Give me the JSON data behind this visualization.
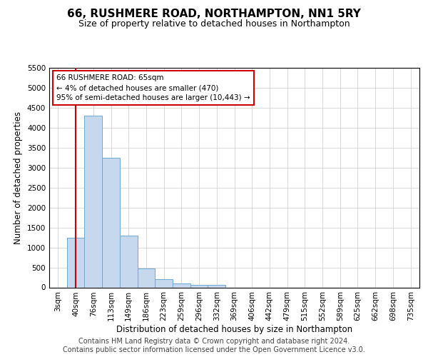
{
  "title": "66, RUSHMERE ROAD, NORTHAMPTON, NN1 5RY",
  "subtitle": "Size of property relative to detached houses in Northampton",
  "xlabel": "Distribution of detached houses by size in Northampton",
  "ylabel": "Number of detached properties",
  "bin_labels": [
    "3sqm",
    "40sqm",
    "76sqm",
    "113sqm",
    "149sqm",
    "186sqm",
    "223sqm",
    "259sqm",
    "296sqm",
    "332sqm",
    "369sqm",
    "406sqm",
    "442sqm",
    "479sqm",
    "515sqm",
    "552sqm",
    "589sqm",
    "625sqm",
    "662sqm",
    "698sqm",
    "735sqm"
  ],
  "bar_values": [
    0,
    1250,
    4300,
    3250,
    1300,
    480,
    200,
    100,
    60,
    55,
    0,
    0,
    0,
    0,
    0,
    0,
    0,
    0,
    0,
    0,
    0
  ],
  "bar_color": "#c5d8ed",
  "bar_edge_color": "#6fa8d0",
  "property_line_x": 1.5,
  "property_line_color": "#cc0000",
  "annotation_text": "66 RUSHMERE ROAD: 65sqm\n← 4% of detached houses are smaller (470)\n95% of semi-detached houses are larger (10,443) →",
  "annotation_box_color": "#ffffff",
  "annotation_box_edge_color": "#cc0000",
  "ylim": [
    0,
    5500
  ],
  "yticks": [
    0,
    500,
    1000,
    1500,
    2000,
    2500,
    3000,
    3500,
    4000,
    4500,
    5000,
    5500
  ],
  "footer_text": "Contains HM Land Registry data © Crown copyright and database right 2024.\nContains public sector information licensed under the Open Government Licence v3.0.",
  "bg_color": "#ffffff",
  "grid_color": "#cccccc",
  "title_fontsize": 11,
  "subtitle_fontsize": 9,
  "axis_label_fontsize": 8.5,
  "tick_fontsize": 7.5,
  "footer_fontsize": 7
}
